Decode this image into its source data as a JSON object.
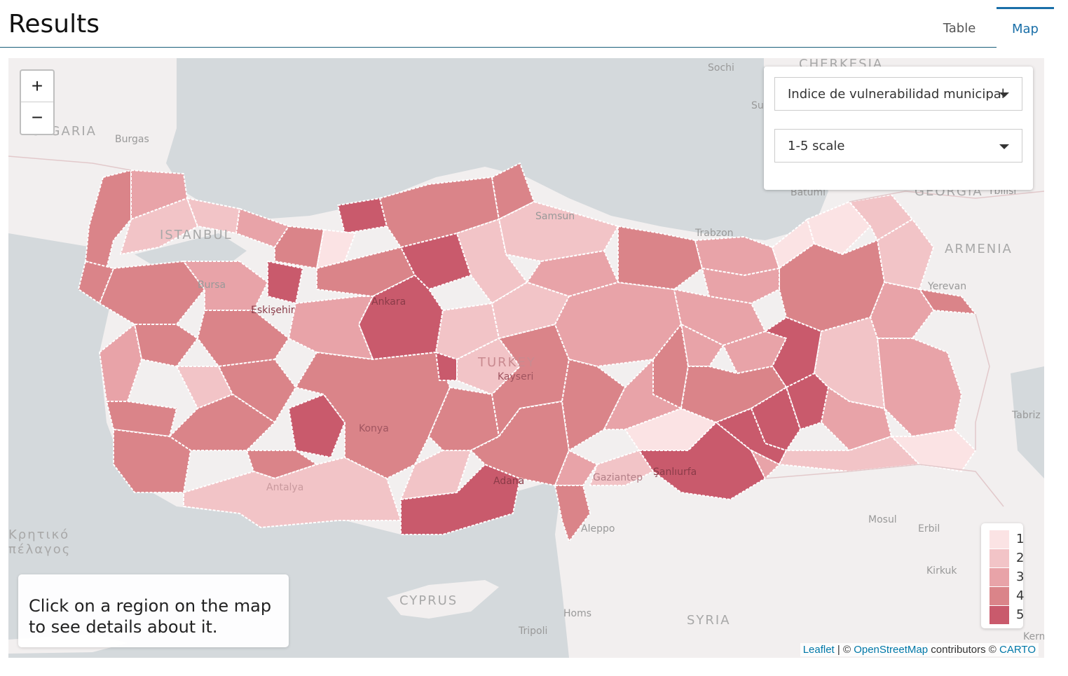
{
  "header": {
    "title": "Results",
    "tabs": [
      {
        "label": "Table",
        "active": false
      },
      {
        "label": "Map",
        "active": true
      }
    ]
  },
  "map": {
    "zoom_in": "+",
    "zoom_out": "−",
    "indicator_select": "Indice de vulnerabilidad municipal",
    "scale_select": "1-5 scale",
    "info_text": "Click on a region on the map to see details about it.",
    "place_labels": [
      "Sochi",
      "CHERKESIA",
      "Sukhumi",
      "BULGARIA",
      "Burgas",
      "Batumi",
      "GEORGIA",
      "Tbilisi",
      "ISTANBUL",
      "ARMENIA",
      "Yerevan",
      "Bursa",
      "Trabzon",
      "Samsun",
      "Ankara",
      "Eskişehir",
      "TURKEY",
      "Kayseri",
      "Konya",
      "Tabriz",
      "Antalya",
      "Adana",
      "Gaziantep",
      "Şanlıurfa",
      "Mosul",
      "Erbil",
      "Aleppo",
      "Κρητικό πέλαγος",
      "Kirkuk",
      "CYPRUS",
      "Homs",
      "SYRIA",
      "Tripoli",
      "Kerm"
    ],
    "legend": [
      {
        "label": "1",
        "color": "#fbe3e4"
      },
      {
        "label": "2",
        "color": "#f2c4c7"
      },
      {
        "label": "3",
        "color": "#e8a3a8"
      },
      {
        "label": "4",
        "color": "#da8489"
      },
      {
        "label": "5",
        "color": "#c95a6c"
      }
    ],
    "attribution": {
      "leaflet": "Leaflet",
      "sep1": " | © ",
      "osm": "OpenStreetMap",
      "contrib": " contributors © ",
      "carto": "CARTO"
    }
  }
}
